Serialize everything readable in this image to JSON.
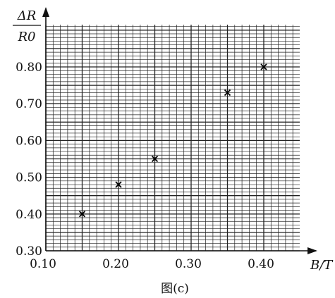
{
  "chart_data": {
    "type": "scatter",
    "title": "",
    "caption": "图(c)",
    "xlabel": "B/T",
    "ylabel": {
      "numerator": "ΔR",
      "denominator": "R0"
    },
    "xlim": [
      0.1,
      0.45
    ],
    "ylim": [
      0.3,
      0.85
    ],
    "x_ticks": [
      "0.10",
      "0.20",
      "0.30",
      "0.40"
    ],
    "y_ticks": [
      "0.30",
      "0.40",
      "0.50",
      "0.60",
      "0.70",
      "0.80"
    ],
    "grid": true,
    "marker": "×",
    "points": [
      {
        "x": 0.15,
        "y": 0.4
      },
      {
        "x": 0.2,
        "y": 0.48
      },
      {
        "x": 0.25,
        "y": 0.55
      },
      {
        "x": 0.35,
        "y": 0.73
      },
      {
        "x": 0.4,
        "y": 0.8
      }
    ]
  }
}
